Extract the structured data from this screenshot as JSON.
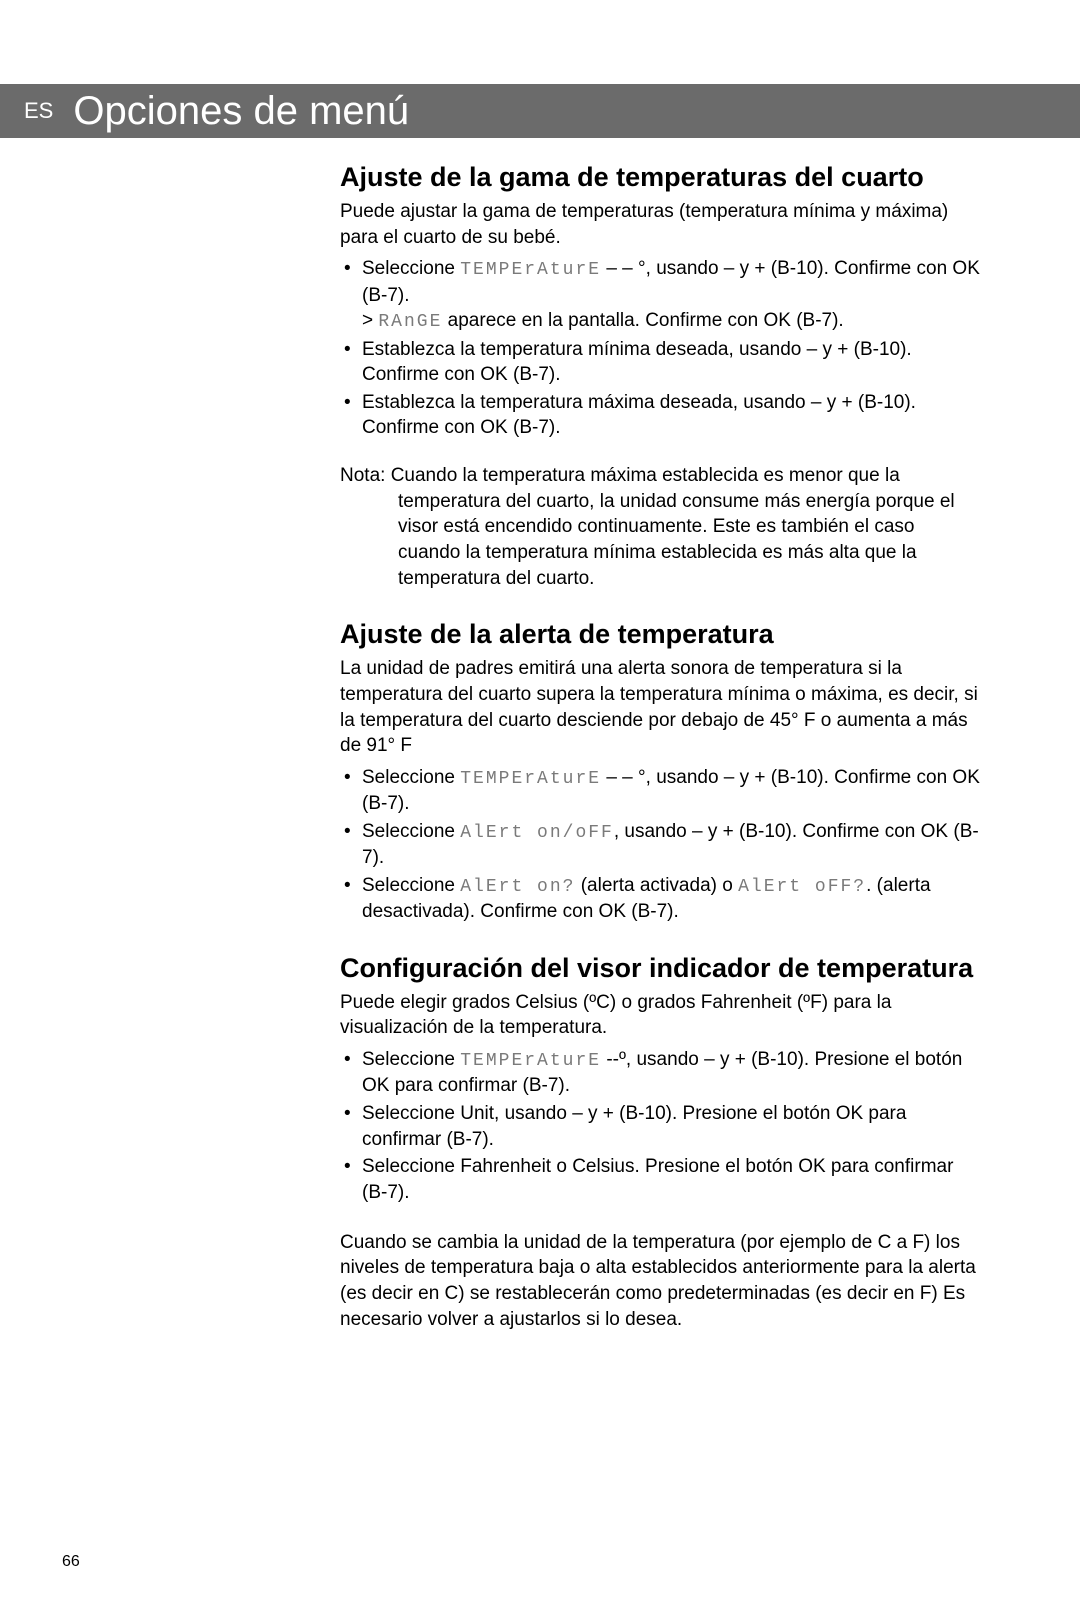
{
  "header": {
    "lang": "ES",
    "title": "Opciones de menú"
  },
  "typography": {
    "heading_fontsize": 27,
    "body_fontsize": 19,
    "header_title_fontsize": 40,
    "display_font_color": "#7a7a7a",
    "body_color": "#000000",
    "header_bg": "#6b6b6b",
    "header_fg": "#ffffff",
    "page_bg": "#ffffff"
  },
  "sections": [
    {
      "heading": "Ajuste de la gama de temperaturas del cuarto",
      "intro": "Puede ajustar la gama de temperaturas (temperatura mínima y máxima) para el cuarto de su bebé.",
      "bullets": [
        {
          "pre": "Seleccione ",
          "display": "TEMPErAturE",
          "post": " – – °, usando – y + (B-10). Confirme con OK (B-7).",
          "sub_pre": "> ",
          "sub_display": "RAnGE",
          "sub_post": " aparece en la pantalla. Confirme con OK (B-7)."
        },
        {
          "pre": "Establezca la temperatura mínima deseada, usando – y + (B-10). Confirme con OK (B-7).",
          "display": "",
          "post": ""
        },
        {
          "pre": "Establezca la temperatura máxima deseada, usando – y + (B-10). Confirme con OK (B-7).",
          "display": "",
          "post": ""
        }
      ],
      "note_label": "Nota: ",
      "note_body": "Cuando la temperatura máxima establecida es menor que la temperatura del cuarto, la unidad consume más energía porque el visor está encendido continuamente. Este es también el caso cuando la temperatura mínima establecida es más alta que la temperatura del cuarto."
    },
    {
      "heading": "Ajuste de la alerta de temperatura",
      "intro": "La unidad de padres emitirá una alerta sonora de temperatura si la temperatura del cuarto supera la temperatura mínima o máxima, es decir, si la temperatura del cuarto desciende por debajo de 45° F o aumenta a más de 91° F",
      "bullets": [
        {
          "pre": "Seleccione ",
          "display": "TEMPErAturE",
          "post": " – – °, usando – y + (B-10). Confirme con OK (B-7)."
        },
        {
          "pre": "Seleccione ",
          "display": "AlErt on/oFF",
          "post": ", usando – y + (B-10). Confirme con OK (B-7)."
        },
        {
          "pre": "Seleccione ",
          "display": "AlErt on?",
          "post": " (alerta activada) o ",
          "display2": "AlErt oFF?",
          "post2": ". (alerta desactivada). Confirme con OK (B-7)."
        }
      ]
    },
    {
      "heading": "Configuración del visor indicador de temperatura",
      "intro": "Puede elegir grados Celsius (ºC) o grados Fahrenheit (ºF) para la visualización de la temperatura.",
      "bullets": [
        {
          "pre": "Seleccione ",
          "display": "TEMPErAturE",
          "post": " --º, usando – y + (B-10). Presione el botón OK para confirmar (B-7)."
        },
        {
          "pre": "Seleccione Unit, usando – y + (B-10). Presione el botón OK para confirmar (B-7).",
          "display": "",
          "post": ""
        },
        {
          "pre": "Seleccione Fahrenheit o Celsius. Presione el botón OK para confirmar (B-7).",
          "display": "",
          "post": ""
        }
      ],
      "closing": "Cuando se cambia la unidad de la temperatura (por ejemplo de C a F) los niveles de temperatura baja o alta establecidos anteriormente para la alerta (es decir en C) se restablecerán como predeterminadas (es decir en F) Es necesario volver a ajustarlos si lo desea."
    }
  ],
  "page_number": "66"
}
